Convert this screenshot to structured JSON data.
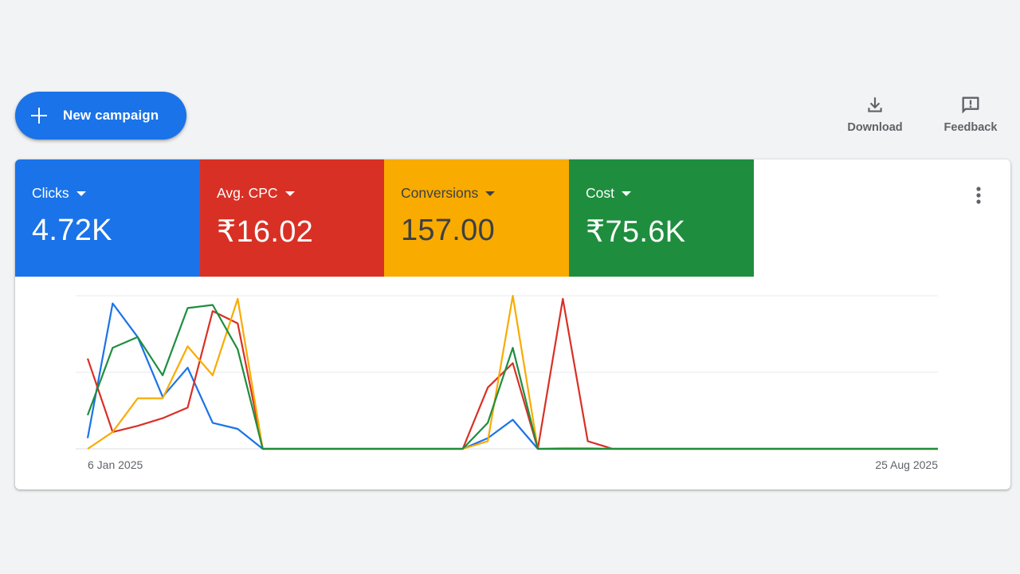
{
  "toolbar": {
    "new_campaign_label": "New campaign",
    "download_label": "Download",
    "feedback_label": "Feedback"
  },
  "metrics": [
    {
      "name": "Clicks",
      "value": "4.72K",
      "color": "#1a73e8"
    },
    {
      "name": "Avg. CPC",
      "value": "₹16.02",
      "color": "#d93025"
    },
    {
      "name": "Conversions",
      "value": "157.00",
      "color": "#f9ab00"
    },
    {
      "name": "Cost",
      "value": "₹75.6K",
      "color": "#1e8e3e"
    }
  ],
  "chart_data": {
    "type": "line",
    "x_start_label": "6 Jan 2025",
    "x_end_label": "25 Aug 2025",
    "grid": true,
    "ylim": [
      0,
      1
    ],
    "series": [
      {
        "metric": "Clicks",
        "color": "#1a73e8",
        "values": [
          0.07,
          0.95,
          0.73,
          0.34,
          0.53,
          0.17,
          0.13,
          0,
          0,
          0,
          0,
          0,
          0,
          0,
          0,
          0,
          0.07,
          0.19,
          0,
          0,
          0,
          0,
          0,
          0,
          0,
          0,
          0,
          0,
          0,
          0,
          0,
          0,
          0,
          0,
          0
        ]
      },
      {
        "metric": "Avg. CPC",
        "color": "#d93025",
        "values": [
          0.59,
          0.11,
          0.15,
          0.2,
          0.27,
          0.9,
          0.82,
          0,
          0,
          0,
          0,
          0,
          0,
          0,
          0,
          0,
          0.4,
          0.56,
          0,
          0.98,
          0.05,
          0,
          0,
          0,
          0,
          0,
          0,
          0,
          0,
          0,
          0,
          0,
          0,
          0,
          0
        ]
      },
      {
        "metric": "Conversions",
        "color": "#f9ab00",
        "values": [
          0,
          0.11,
          0.33,
          0.33,
          0.67,
          0.48,
          0.98,
          0,
          0,
          0,
          0,
          0,
          0,
          0,
          0,
          0,
          0.05,
          1,
          0,
          0.005,
          0.005,
          0,
          0,
          0,
          0,
          0,
          0,
          0,
          0,
          0,
          0,
          0,
          0,
          0,
          0
        ]
      },
      {
        "metric": "Cost",
        "color": "#1e8e3e",
        "values": [
          0.22,
          0.66,
          0.73,
          0.48,
          0.92,
          0.94,
          0.65,
          0,
          0,
          0,
          0,
          0,
          0,
          0,
          0,
          0,
          0.17,
          0.66,
          0,
          0,
          0,
          0,
          0,
          0,
          0,
          0,
          0,
          0,
          0,
          0,
          0,
          0,
          0,
          0,
          0
        ]
      }
    ]
  },
  "icons": {
    "add": "plus-icon",
    "download": "download-icon",
    "feedback": "feedback-icon",
    "more": "more-vert-icon"
  }
}
